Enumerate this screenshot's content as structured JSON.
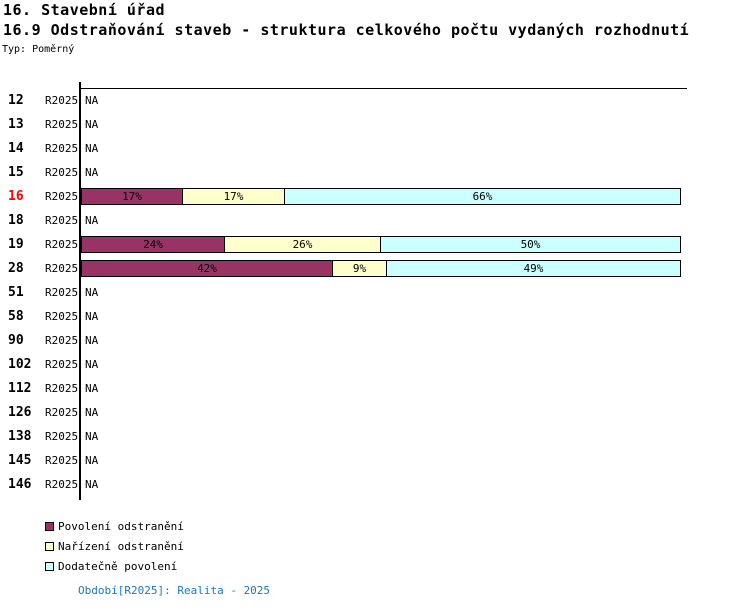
{
  "header": {
    "title1": "16. Stavební úřad",
    "title2": "16.9 Odstraňování staveb - struktura celkového počtu vydaných rozhodnutí",
    "type_label": "Typ: Poměrný"
  },
  "chart_data": {
    "type": "bar",
    "orientation": "horizontal",
    "stacked": true,
    "unit": "%",
    "xlim": [
      0,
      100
    ],
    "grid": false,
    "period_label": "R2025",
    "na_label": "NA",
    "categories": [
      "12",
      "13",
      "14",
      "15",
      "16",
      "18",
      "19",
      "28",
      "51",
      "58",
      "90",
      "102",
      "112",
      "126",
      "138",
      "145",
      "146"
    ],
    "highlighted_category": "16",
    "highlight_color": "#ff0000",
    "series": [
      {
        "name": "Povolení odstranění",
        "color": "#993366",
        "values": [
          null,
          null,
          null,
          null,
          17,
          null,
          24,
          42,
          null,
          null,
          null,
          null,
          null,
          null,
          null,
          null,
          null
        ]
      },
      {
        "name": "Nařízení odstranění",
        "color": "#ffffcc",
        "values": [
          null,
          null,
          null,
          null,
          17,
          null,
          26,
          9,
          null,
          null,
          null,
          null,
          null,
          null,
          null,
          null,
          null
        ]
      },
      {
        "name": "Dodatečně povolení",
        "color": "#ccffff",
        "values": [
          null,
          null,
          null,
          null,
          66,
          null,
          50,
          49,
          null,
          null,
          null,
          null,
          null,
          null,
          null,
          null,
          null
        ]
      }
    ]
  },
  "legend": {
    "items": [
      {
        "label": "Povolení odstranění",
        "color": "#993366"
      },
      {
        "label": "Nařízení odstranění",
        "color": "#ffffcc"
      },
      {
        "label": "Dodatečně povolení",
        "color": "#ccffff"
      }
    ]
  },
  "footer": {
    "text": "Období[R2025]: Realita - 2025",
    "color": "#1f77b4"
  }
}
